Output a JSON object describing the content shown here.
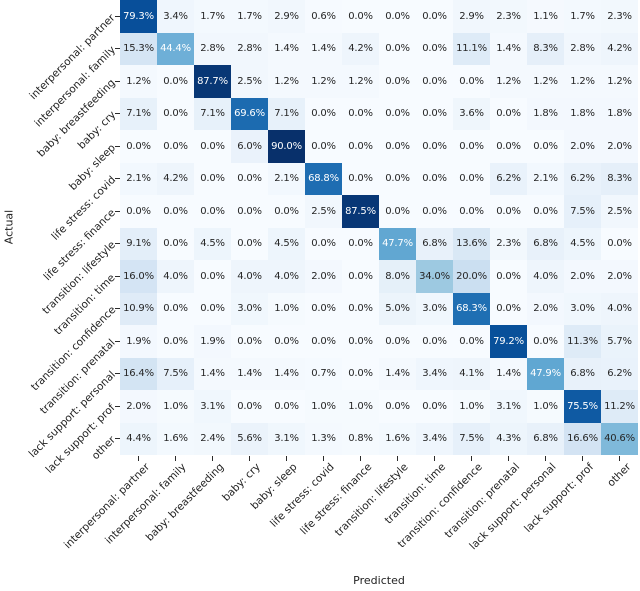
{
  "chart_data": {
    "type": "heatmap",
    "title": "",
    "xlabel": "Predicted",
    "ylabel": "Actual",
    "x_categories": [
      "interpersonal: partner",
      "interpersonal: family",
      "baby: breastfeeding",
      "baby: cry",
      "baby: sleep",
      "life stress: covid",
      "life stress: finance",
      "transition: lifestyle",
      "transition: time",
      "transition: confidence",
      "transition: prenatal",
      "lack support: personal",
      "lack support: prof",
      "other"
    ],
    "y_categories": [
      "interpersonal: partner",
      "interpersonal: family",
      "baby: breastfeeding",
      "baby: cry",
      "baby: sleep",
      "life stress: covid",
      "life stress: finance",
      "transition: lifestyle",
      "transition: time",
      "transition: confidence",
      "transition: prenatal",
      "lack support: personal",
      "lack support: prof",
      "other"
    ],
    "values": [
      [
        79.3,
        3.4,
        1.7,
        1.7,
        2.9,
        0.6,
        0.0,
        0.0,
        0.0,
        2.9,
        2.3,
        1.1,
        1.7,
        2.3
      ],
      [
        15.3,
        44.4,
        2.8,
        2.8,
        1.4,
        1.4,
        4.2,
        0.0,
        0.0,
        11.1,
        1.4,
        8.3,
        2.8,
        4.2
      ],
      [
        1.2,
        0.0,
        87.7,
        2.5,
        1.2,
        1.2,
        1.2,
        0.0,
        0.0,
        0.0,
        1.2,
        1.2,
        1.2,
        1.2
      ],
      [
        7.1,
        0.0,
        7.1,
        69.6,
        7.1,
        0.0,
        0.0,
        0.0,
        0.0,
        3.6,
        0.0,
        1.8,
        1.8,
        1.8
      ],
      [
        0.0,
        0.0,
        0.0,
        6.0,
        90.0,
        0.0,
        0.0,
        0.0,
        0.0,
        0.0,
        0.0,
        0.0,
        2.0,
        2.0
      ],
      [
        2.1,
        4.2,
        0.0,
        0.0,
        2.1,
        68.8,
        0.0,
        0.0,
        0.0,
        0.0,
        6.2,
        2.1,
        6.2,
        8.3
      ],
      [
        0.0,
        0.0,
        0.0,
        0.0,
        0.0,
        2.5,
        87.5,
        0.0,
        0.0,
        0.0,
        0.0,
        0.0,
        7.5,
        2.5
      ],
      [
        9.1,
        0.0,
        4.5,
        0.0,
        4.5,
        0.0,
        0.0,
        47.7,
        6.8,
        13.6,
        2.3,
        6.8,
        4.5,
        0.0
      ],
      [
        16.0,
        4.0,
        0.0,
        4.0,
        4.0,
        2.0,
        0.0,
        8.0,
        34.0,
        20.0,
        0.0,
        4.0,
        2.0,
        2.0
      ],
      [
        10.9,
        0.0,
        0.0,
        3.0,
        1.0,
        0.0,
        0.0,
        5.0,
        3.0,
        68.3,
        0.0,
        2.0,
        3.0,
        4.0
      ],
      [
        1.9,
        0.0,
        1.9,
        0.0,
        0.0,
        0.0,
        0.0,
        0.0,
        0.0,
        0.0,
        79.2,
        0.0,
        11.3,
        5.7
      ],
      [
        16.4,
        7.5,
        1.4,
        1.4,
        1.4,
        0.7,
        0.0,
        1.4,
        3.4,
        4.1,
        1.4,
        47.9,
        6.8,
        6.2
      ],
      [
        2.0,
        1.0,
        3.1,
        0.0,
        0.0,
        1.0,
        1.0,
        0.0,
        0.0,
        1.0,
        3.1,
        1.0,
        75.5,
        11.2
      ],
      [
        4.4,
        1.6,
        2.4,
        5.6,
        3.1,
        1.3,
        0.8,
        1.6,
        3.4,
        7.5,
        4.3,
        6.8,
        16.6,
        40.6
      ]
    ],
    "value_suffix": "%",
    "value_decimals": 1,
    "vmin": 0,
    "vmax": 90,
    "colormap": "Blues",
    "colormap_stops": [
      "#f7fbff",
      "#deebf7",
      "#c6dbef",
      "#9ecae1",
      "#6baed6",
      "#4292c6",
      "#2171b5",
      "#08519c",
      "#08306b"
    ],
    "annotation_colors": {
      "dark": "#262626",
      "light": "#ffffff"
    },
    "grid": false,
    "legend_position": "none"
  }
}
